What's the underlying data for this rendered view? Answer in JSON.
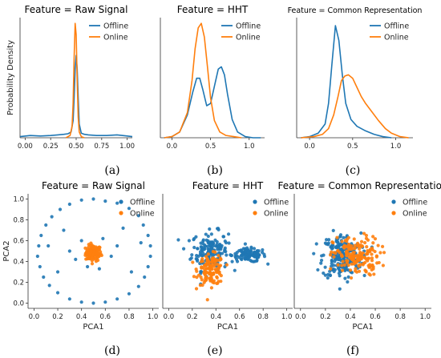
{
  "colors": {
    "offline": "#1f77b4",
    "online": "#ff7f0e"
  },
  "legend": [
    "Offline",
    "Online"
  ],
  "captions": [
    "(a)",
    "(b)",
    "(c)",
    "(d)",
    "(e)",
    "(f)"
  ],
  "chart_data": [
    {
      "type": "line",
      "panel": "a",
      "title": "Feature = Raw Signal",
      "ylabel": "Probability Density",
      "xlabel": "",
      "xlim": [
        -0.05,
        1.05
      ],
      "ylim": [
        0,
        1.05
      ],
      "xticks": [
        "0.00",
        "0.25",
        "0.50",
        "0.75",
        "1.00"
      ],
      "xtick_values": [
        0,
        0.25,
        0.5,
        0.75,
        1.0
      ],
      "legend_position": "top-right",
      "series": [
        {
          "name": "Offline",
          "x": [
            -0.05,
            0.05,
            0.15,
            0.25,
            0.32,
            0.38,
            0.42,
            0.45,
            0.47,
            0.48,
            0.49,
            0.5,
            0.51,
            0.52,
            0.53,
            0.55,
            0.58,
            0.62,
            0.7,
            0.8,
            0.9,
            1.0,
            1.05
          ],
          "y": [
            0.01,
            0.02,
            0.015,
            0.02,
            0.025,
            0.03,
            0.035,
            0.05,
            0.15,
            0.35,
            0.6,
            0.72,
            0.6,
            0.35,
            0.12,
            0.04,
            0.03,
            0.025,
            0.02,
            0.02,
            0.025,
            0.015,
            0.01
          ]
        },
        {
          "name": "Online",
          "x": [
            0.4,
            0.44,
            0.46,
            0.47,
            0.48,
            0.49,
            0.5,
            0.51,
            0.52,
            0.53,
            0.55,
            0.58
          ],
          "y": [
            0,
            0.02,
            0.1,
            0.3,
            0.7,
            1.0,
            0.9,
            0.5,
            0.18,
            0.05,
            0.01,
            0
          ]
        }
      ]
    },
    {
      "type": "line",
      "panel": "b",
      "title": "Feature = HHT",
      "xlabel": "",
      "ylabel": "",
      "xlim": [
        -0.15,
        1.2
      ],
      "ylim": [
        0,
        1.05
      ],
      "xticks": [
        "0.0",
        "0.5",
        "1.0"
      ],
      "xtick_values": [
        0,
        0.5,
        1.0
      ],
      "legend_position": "top-right",
      "series": [
        {
          "name": "Offline",
          "x": [
            -0.1,
            0.0,
            0.1,
            0.2,
            0.27,
            0.32,
            0.36,
            0.4,
            0.45,
            0.5,
            0.55,
            0.6,
            0.64,
            0.68,
            0.72,
            0.78,
            0.85,
            0.95,
            1.05,
            1.15
          ],
          "y": [
            0,
            0.01,
            0.05,
            0.2,
            0.4,
            0.52,
            0.52,
            0.42,
            0.28,
            0.3,
            0.45,
            0.6,
            0.62,
            0.55,
            0.38,
            0.16,
            0.05,
            0.01,
            0,
            0
          ]
        },
        {
          "name": "Online",
          "x": [
            -0.1,
            0.0,
            0.1,
            0.2,
            0.26,
            0.3,
            0.34,
            0.38,
            0.42,
            0.46,
            0.5,
            0.55,
            0.62,
            0.7,
            0.8,
            0.9
          ],
          "y": [
            0,
            0.01,
            0.05,
            0.22,
            0.5,
            0.78,
            0.96,
            1.0,
            0.88,
            0.62,
            0.35,
            0.15,
            0.05,
            0.02,
            0.01,
            0
          ]
        }
      ]
    },
    {
      "type": "line",
      "panel": "c",
      "title": "Feature = Common Representation",
      "xlabel": "",
      "ylabel": "",
      "xlim": [
        -0.15,
        1.2
      ],
      "ylim": [
        0,
        1.05
      ],
      "xticks": [
        "0.0",
        "0.5",
        "1.0"
      ],
      "xtick_values": [
        0,
        0.5,
        1.0
      ],
      "legend_position": "top-right",
      "series": [
        {
          "name": "Offline",
          "x": [
            -0.1,
            0.0,
            0.1,
            0.18,
            0.22,
            0.26,
            0.3,
            0.34,
            0.38,
            0.42,
            0.48,
            0.55,
            0.65,
            0.75,
            0.85,
            0.95
          ],
          "y": [
            0,
            0.01,
            0.04,
            0.12,
            0.3,
            0.65,
            0.98,
            0.85,
            0.55,
            0.3,
            0.16,
            0.1,
            0.06,
            0.03,
            0.01,
            0
          ]
        },
        {
          "name": "Online",
          "x": [
            -0.1,
            0.05,
            0.15,
            0.22,
            0.28,
            0.33,
            0.37,
            0.41,
            0.45,
            0.5,
            0.55,
            0.6,
            0.65,
            0.72,
            0.8,
            0.88,
            0.95,
            1.05,
            1.15
          ],
          "y": [
            0,
            0.01,
            0.03,
            0.08,
            0.2,
            0.36,
            0.5,
            0.54,
            0.55,
            0.52,
            0.44,
            0.36,
            0.3,
            0.23,
            0.15,
            0.08,
            0.04,
            0.01,
            0
          ]
        }
      ]
    },
    {
      "type": "scatter",
      "panel": "d",
      "title": "Feature = Raw Signal",
      "xlabel": "PCA1",
      "ylabel": "PCA2",
      "xlim": [
        -0.05,
        1.05
      ],
      "ylim": [
        -0.05,
        1.05
      ],
      "xticks": [
        "0.0",
        "0.2",
        "0.4",
        "0.6",
        "0.8",
        "1.0"
      ],
      "xtick_values": [
        0,
        0.2,
        0.4,
        0.6,
        0.8,
        1.0
      ],
      "yticks": [
        "0.0",
        "0.2",
        "0.4",
        "0.6",
        "0.8",
        "1.0"
      ],
      "ytick_values": [
        0,
        0.2,
        0.4,
        0.6,
        0.8,
        1.0
      ],
      "legend_position": "top-right",
      "series": [
        {
          "name": "Offline",
          "points": [
            [
              0.5,
              1.0
            ],
            [
              0.4,
              0.99
            ],
            [
              0.6,
              0.98
            ],
            [
              0.3,
              0.95
            ],
            [
              0.7,
              0.96
            ],
            [
              0.22,
              0.9
            ],
            [
              0.8,
              0.91
            ],
            [
              0.15,
              0.83
            ],
            [
              0.88,
              0.84
            ],
            [
              0.1,
              0.75
            ],
            [
              0.92,
              0.75
            ],
            [
              0.06,
              0.65
            ],
            [
              0.96,
              0.65
            ],
            [
              0.04,
              0.55
            ],
            [
              0.98,
              0.55
            ],
            [
              0.03,
              0.45
            ],
            [
              0.98,
              0.45
            ],
            [
              0.05,
              0.35
            ],
            [
              0.96,
              0.35
            ],
            [
              0.08,
              0.25
            ],
            [
              0.93,
              0.25
            ],
            [
              0.13,
              0.17
            ],
            [
              0.88,
              0.16
            ],
            [
              0.2,
              0.1
            ],
            [
              0.8,
              0.09
            ],
            [
              0.3,
              0.04
            ],
            [
              0.7,
              0.04
            ],
            [
              0.4,
              0.01
            ],
            [
              0.6,
              0.01
            ],
            [
              0.5,
              0.0
            ],
            [
              0.35,
              0.42
            ],
            [
              0.65,
              0.45
            ],
            [
              0.4,
              0.6
            ],
            [
              0.58,
              0.62
            ],
            [
              0.3,
              0.5
            ],
            [
              0.7,
              0.55
            ],
            [
              0.45,
              0.35
            ],
            [
              0.55,
              0.33
            ],
            [
              0.25,
              0.7
            ],
            [
              0.75,
              0.72
            ],
            [
              0.2,
              0.3
            ],
            [
              0.82,
              0.3
            ],
            [
              0.12,
              0.55
            ],
            [
              0.9,
              0.58
            ]
          ]
        },
        {
          "name": "Online",
          "cluster": {
            "cx": 0.5,
            "cy": 0.48,
            "rx": 0.06,
            "ry": 0.07,
            "n": 120
          }
        }
      ]
    },
    {
      "type": "scatter",
      "panel": "e",
      "title": "Feature = HHT",
      "xlabel": "PCA1",
      "ylabel": "",
      "xlim": [
        -0.05,
        1.05
      ],
      "ylim": [
        -0.05,
        1.05
      ],
      "xticks": [
        "0.0",
        "0.2",
        "0.4",
        "0.6",
        "0.8",
        "1.0"
      ],
      "xtick_values": [
        0,
        0.2,
        0.4,
        0.6,
        0.8,
        1.0
      ],
      "legend_position": "top-right",
      "series": [
        {
          "name": "Offline",
          "clusters": [
            {
              "cx": 0.35,
              "cy": 0.5,
              "rx": 0.14,
              "ry": 0.17,
              "n": 170
            },
            {
              "cx": 0.68,
              "cy": 0.46,
              "rx": 0.13,
              "ry": 0.06,
              "n": 110
            }
          ]
        },
        {
          "name": "Online",
          "clusters": [
            {
              "cx": 0.36,
              "cy": 0.32,
              "rx": 0.1,
              "ry": 0.13,
              "n": 130
            }
          ]
        }
      ]
    },
    {
      "type": "scatter",
      "panel": "f",
      "title": "Feature = Common Representation",
      "xlabel": "PCA1",
      "ylabel": "",
      "xlim": [
        -0.05,
        1.05
      ],
      "ylim": [
        -0.05,
        1.05
      ],
      "xticks": [
        "0.0",
        "0.2",
        "0.4",
        "0.6",
        "0.8",
        "1.0"
      ],
      "xtick_values": [
        0,
        0.2,
        0.4,
        0.6,
        0.8,
        1.0
      ],
      "legend_position": "top-right",
      "series": [
        {
          "name": "Offline",
          "clusters": [
            {
              "cx": 0.33,
              "cy": 0.45,
              "rx": 0.14,
              "ry": 0.2,
              "n": 220
            }
          ]
        },
        {
          "name": "Online",
          "clusters": [
            {
              "cx": 0.45,
              "cy": 0.45,
              "rx": 0.17,
              "ry": 0.17,
              "n": 170
            }
          ]
        }
      ]
    }
  ]
}
